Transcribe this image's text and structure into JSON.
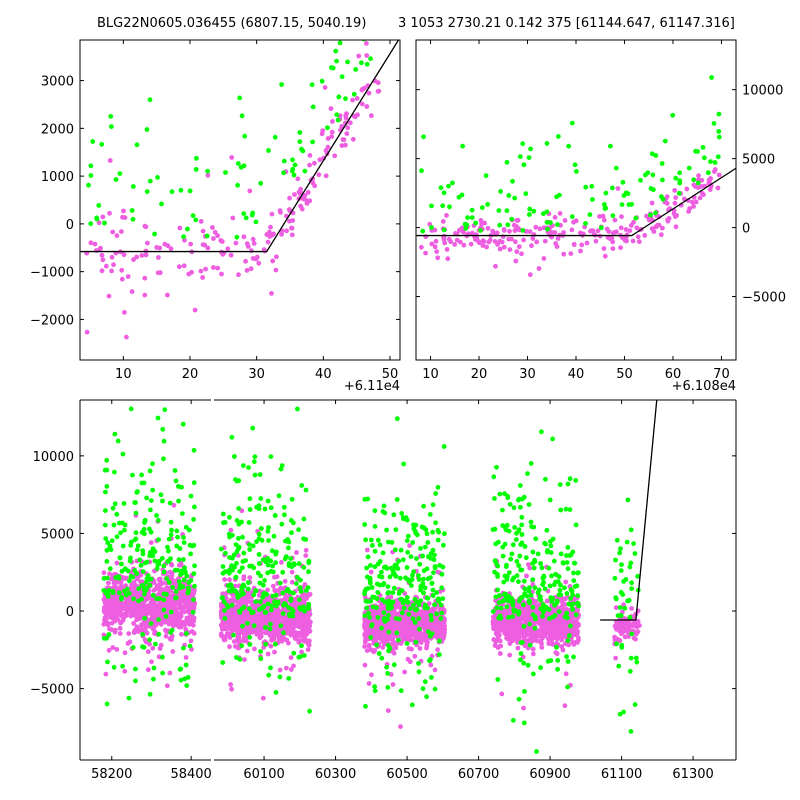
{
  "figure": {
    "title_left": "BLG22N0605.036455 (6807.15, 5040.19)",
    "title_right": "3 1053 2730.21 0.142 375 [61144.647, 61147.316]"
  },
  "colors": {
    "series_a": "#ee5ee0",
    "series_b": "#00ff00",
    "fit": "#000000"
  },
  "chart_data": [
    {
      "type": "scatter",
      "title": "BLG22N0605.036455 (6807.15, 5040.19)",
      "xlabel": "",
      "ylabel": "",
      "x_offset_label": "+6.11e4",
      "xlim": [
        3.5,
        51.5
      ],
      "ylim": [
        -2850,
        3850
      ],
      "xticks": [
        10,
        20,
        30,
        40,
        50
      ],
      "xtick_labels": [
        "10",
        "20",
        "30",
        "40",
        "50"
      ],
      "yticks": [
        -2000,
        -1000,
        0,
        1000,
        2000,
        3000
      ],
      "ytick_labels": [
        "−2000",
        "−1000",
        "0",
        "1000",
        "2000",
        "3000"
      ],
      "fit_line": {
        "x": [
          3.5,
          31.5,
          51.5
        ],
        "y": [
          -580,
          -580,
          3900
        ]
      },
      "series": [
        {
          "name": "magenta",
          "density": "dense cluster below baseline rising after x≈31",
          "baseline": -580,
          "spread": 350,
          "n": 210
        },
        {
          "name": "green",
          "density": "sparse points above",
          "baseline": 400,
          "spread": 1200,
          "n": 95
        }
      ]
    },
    {
      "type": "scatter",
      "title": "3 1053 2730.21 0.142 375 [61144.647, 61147.316]",
      "xlabel": "",
      "ylabel": "",
      "x_offset_label": "+6.108e4",
      "xlim": [
        7,
        73
      ],
      "ylim": [
        -9600,
        13600
      ],
      "xticks": [
        10,
        20,
        30,
        40,
        50,
        60,
        70
      ],
      "xtick_labels": [
        "10",
        "20",
        "30",
        "40",
        "50",
        "60",
        "70"
      ],
      "yticks": [
        -5000,
        0,
        5000,
        10000
      ],
      "ytick_labels": [
        "−5000",
        "0",
        "5000",
        "10000"
      ],
      "yaxis_side": "right",
      "fit_line": {
        "x": [
          7,
          51.5,
          73
        ],
        "y": [
          -580,
          -580,
          4300
        ]
      },
      "series": [
        {
          "name": "magenta",
          "density": "dense band near zero rising after x≈52",
          "baseline": -300,
          "spread": 700,
          "n": 260
        },
        {
          "name": "green",
          "density": "scattered above band",
          "baseline": 2500,
          "spread": 3000,
          "n": 120
        }
      ]
    },
    {
      "type": "scatter",
      "title": "",
      "xlabel": "",
      "ylabel": "",
      "broken_x_axis": true,
      "segments": [
        {
          "xlim": [
            58120,
            58450
          ],
          "xticks": [
            58200,
            58400
          ],
          "xtick_labels": [
            "58200",
            "58400"
          ]
        },
        {
          "xlim": [
            59960,
            61420
          ],
          "xticks": [
            60100,
            60300,
            60500,
            60700,
            60900,
            61100,
            61300
          ],
          "xtick_labels": [
            "60100",
            "60300",
            "60500",
            "60700",
            "60900",
            "61100",
            "61300"
          ]
        }
      ],
      "ylim": [
        -9600,
        13600
      ],
      "yticks": [
        -5000,
        0,
        5000,
        10000
      ],
      "ytick_labels": [
        "−5000",
        "0",
        "5000",
        "10000"
      ],
      "seasons": [
        {
          "x_range": [
            58180,
            58410
          ],
          "median": 500,
          "spread": 900
        },
        {
          "x_range": [
            59980,
            60230
          ],
          "median": -400,
          "spread": 900
        },
        {
          "x_range": [
            60380,
            60605
          ],
          "median": -800,
          "spread": 700
        },
        {
          "x_range": [
            60740,
            60980
          ],
          "median": -700,
          "spread": 700
        },
        {
          "x_range": [
            61080,
            61150
          ],
          "median": -900,
          "spread": 500
        }
      ],
      "fit_line": {
        "x": [
          61040,
          61140,
          61200
        ],
        "y": [
          -580,
          -580,
          14000
        ]
      },
      "series": [
        {
          "name": "magenta"
        },
        {
          "name": "green"
        }
      ]
    }
  ]
}
